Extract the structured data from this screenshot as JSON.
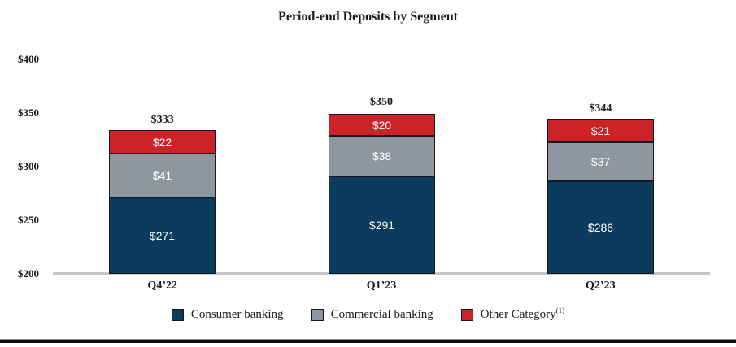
{
  "chart_data": {
    "type": "bar",
    "stacked": true,
    "title": "Period-end Deposits by Segment",
    "categories": [
      "Q4’22",
      "Q1’23",
      "Q2’23"
    ],
    "series": [
      {
        "name": "Consumer banking",
        "color": "#0B3C5D",
        "values": [
          271,
          291,
          286
        ]
      },
      {
        "name": "Commercial banking",
        "color": "#8E96A0",
        "values": [
          41,
          38,
          37
        ]
      },
      {
        "name": "Other Category",
        "color": "#CC2228",
        "values": [
          22,
          20,
          21
        ],
        "footnote_superscript": "(1)"
      }
    ],
    "totals": [
      333,
      350,
      344
    ],
    "total_labels": [
      "$333",
      "$350",
      "$344"
    ],
    "segment_value_labels": [
      [
        "$271",
        "$41",
        "$22"
      ],
      [
        "$291",
        "$38",
        "$20"
      ],
      [
        "$286",
        "$37",
        "$21"
      ]
    ],
    "y_axis": {
      "tick_labels": [
        "$400",
        "$350",
        "$300",
        "$250",
        "$200"
      ],
      "tick_values": [
        400,
        350,
        300,
        250,
        200
      ],
      "range": [
        200,
        400
      ]
    },
    "legend_position": "bottom",
    "grid": false,
    "colors": {
      "consumer_banking": "#0B3C5D",
      "commercial_banking": "#8E96A0",
      "other_category": "#CC2228",
      "axis_line": "#C6C6C6",
      "text": "#1A1A1A",
      "segment_label_text": "#FFFFFF"
    }
  }
}
